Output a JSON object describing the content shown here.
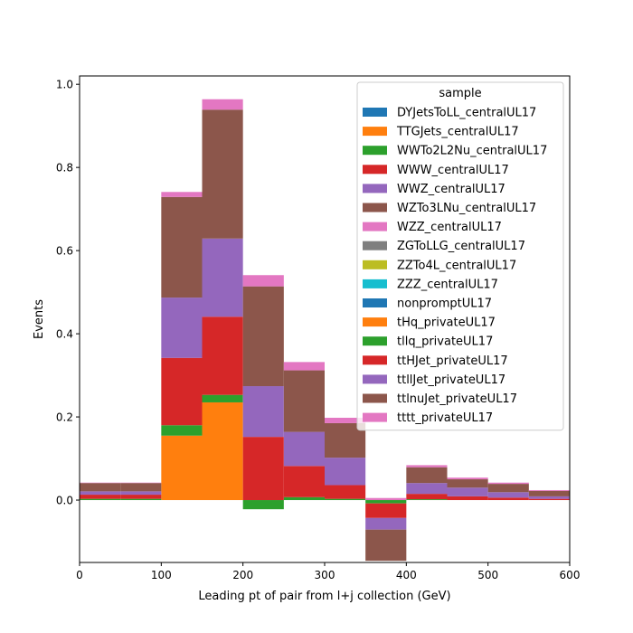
{
  "chart_data": {
    "type": "bar",
    "stacked": true,
    "histogram": true,
    "xlabel": "Leading pt of pair from l+j collection (GeV)",
    "ylabel": "Events",
    "xlim": [
      0,
      600
    ],
    "ylim": [
      -0.15,
      1.02
    ],
    "xticks": [
      "0",
      "100",
      "200",
      "300",
      "400",
      "500",
      "600"
    ],
    "yticks": [
      "0.0",
      "0.2",
      "0.4",
      "0.6",
      "0.8",
      "1.0"
    ],
    "bin_edges": [
      0,
      50,
      100,
      150,
      200,
      250,
      300,
      350,
      400,
      450,
      500,
      550,
      600
    ],
    "legend": {
      "title": "sample",
      "placement": "upper right"
    },
    "series": [
      {
        "name": "DYJetsToLL_centralUL17",
        "color": "#1f77b4",
        "values": [
          0,
          0,
          0,
          0,
          0,
          0,
          0,
          0,
          0,
          0,
          0,
          0
        ]
      },
      {
        "name": "TTGJets_centralUL17",
        "color": "#ff7f0e",
        "values": [
          0,
          0,
          0,
          0,
          0,
          0,
          0,
          0,
          0,
          0,
          0,
          0
        ]
      },
      {
        "name": "WWTo2L2Nu_centralUL17",
        "color": "#2ca02c",
        "values": [
          0,
          0,
          0,
          0,
          0,
          0,
          0,
          0,
          0,
          0,
          0,
          0
        ]
      },
      {
        "name": "WWW_centralUL17",
        "color": "#d62728",
        "values": [
          0,
          0,
          0,
          0,
          0,
          0,
          0,
          0,
          0,
          0,
          0,
          0
        ]
      },
      {
        "name": "WWZ_centralUL17",
        "color": "#9467bd",
        "values": [
          0,
          0,
          0,
          0,
          0,
          0,
          0,
          0,
          0,
          0,
          0,
          0
        ]
      },
      {
        "name": "WZTo3LNu_centralUL17",
        "color": "#8c564b",
        "values": [
          0,
          0,
          0,
          0,
          0,
          0,
          0,
          0,
          0,
          0,
          0,
          0
        ]
      },
      {
        "name": "WZZ_centralUL17",
        "color": "#e377c2",
        "values": [
          0,
          0,
          0,
          0,
          0,
          0,
          0,
          0,
          0,
          0,
          0,
          0
        ]
      },
      {
        "name": "ZGToLLG_centralUL17",
        "color": "#7f7f7f",
        "values": [
          0,
          0,
          0,
          0,
          0,
          0,
          0,
          0,
          0,
          0,
          0,
          0
        ]
      },
      {
        "name": "ZZTo4L_centralUL17",
        "color": "#bcbd22",
        "values": [
          0,
          0,
          0,
          0,
          0,
          0,
          0,
          0,
          0,
          0,
          0,
          0
        ]
      },
      {
        "name": "ZZZ_centralUL17",
        "color": "#17becf",
        "values": [
          0,
          0,
          0,
          0,
          0,
          0,
          0,
          0,
          0,
          0,
          0,
          0
        ]
      },
      {
        "name": "nonpromptUL17",
        "color": "#1f77b4",
        "values": [
          0,
          0,
          0,
          0,
          0,
          0,
          0,
          0,
          0,
          0,
          0,
          0
        ]
      },
      {
        "name": "tHq_privateUL17",
        "color": "#ff7f0e",
        "values": [
          0,
          0,
          0.155,
          0.235,
          0,
          0,
          0,
          0,
          0,
          0,
          0,
          0
        ]
      },
      {
        "name": "tllq_privateUL17",
        "color": "#2ca02c",
        "values": [
          0.003,
          0.003,
          0.025,
          0.018,
          -0.022,
          0.007,
          0.003,
          -0.008,
          0.002,
          0,
          0,
          0
        ]
      },
      {
        "name": "ttHJet_privateUL17",
        "color": "#d62728",
        "values": [
          0.01,
          0.01,
          0.162,
          0.188,
          0.152,
          0.075,
          0.033,
          -0.035,
          0.013,
          0.009,
          0.006,
          0.003
        ]
      },
      {
        "name": "ttllJet_privateUL17",
        "color": "#9467bd",
        "values": [
          0.008,
          0.008,
          0.145,
          0.188,
          0.122,
          0.082,
          0.066,
          -0.028,
          0.026,
          0.021,
          0.013,
          0.006
        ]
      },
      {
        "name": "ttlnuJet_privateUL17",
        "color": "#8c564b",
        "values": [
          0.02,
          0.02,
          0.242,
          0.31,
          0.24,
          0.148,
          0.083,
          -0.075,
          0.038,
          0.02,
          0.02,
          0.013
        ]
      },
      {
        "name": "tttt_privateUL17",
        "color": "#e377c2",
        "values": [
          0.001,
          0.001,
          0.012,
          0.025,
          0.027,
          0.02,
          0.013,
          0.005,
          0.005,
          0.004,
          0.003,
          0.002
        ]
      }
    ]
  }
}
